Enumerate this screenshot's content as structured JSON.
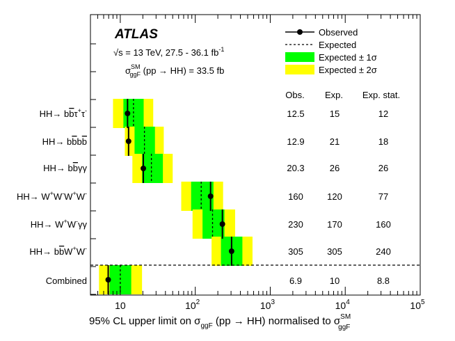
{
  "chart_data": {
    "type": "scatter",
    "title": "ATLAS",
    "subtitle_energy": "√s = 13 TeV,  27.5 - 36.1 fb",
    "subtitle_energy_sup": "-1",
    "xsec_text": {
      "sigma": "σ",
      "sup": "SM",
      "sub": "ggF",
      "rest": " (pp → HH) = 33.5 fb"
    },
    "xlabel": {
      "pre": "95% CL upper limit on σ",
      "sub1": "ggF",
      "mid": " (pp → HH) normalised to σ",
      "sup2": "SM",
      "sub2": "ggF"
    },
    "x_scale": "log",
    "xlim": [
      4,
      100000
    ],
    "x_ticks": [
      10,
      100,
      1000,
      10000,
      100000
    ],
    "x_tick_labels": [
      {
        "base": "10",
        "exp": ""
      },
      {
        "base": "10",
        "exp": "2"
      },
      {
        "base": "10",
        "exp": "3"
      },
      {
        "base": "10",
        "exp": "4"
      },
      {
        "base": "10",
        "exp": "5"
      }
    ],
    "legend": {
      "observed": "Observed",
      "expected": "Expected",
      "band1": "Expected ± 1σ",
      "band2": "Expected ± 2σ",
      "placement": "top-right"
    },
    "table_headers": [
      "Obs.",
      "Exp.",
      "Exp. stat."
    ],
    "channels": [
      {
        "label": "HH→ bb̄τ⁺τ⁻",
        "obs": 12.5,
        "exp": 15,
        "band1": [
          11,
          20.5
        ],
        "band2": [
          8,
          27.5
        ],
        "obs_text": "12.5",
        "exp_text": "15",
        "stat_text": "12"
      },
      {
        "label": "HH→ bb̄bb̄",
        "obs": 12.9,
        "exp": 21,
        "band1": [
          15.5,
          29
        ],
        "band2": [
          11.5,
          38
        ],
        "obs_text": "12.9",
        "exp_text": "21",
        "stat_text": "18"
      },
      {
        "label": "HH→ bb̄γγ",
        "obs": 20.3,
        "exp": 26,
        "band1": [
          19.5,
          37
        ],
        "band2": [
          14.5,
          50
        ],
        "obs_text": "20.3",
        "exp_text": "26",
        "stat_text": "26"
      },
      {
        "label": "HH→ W⁺W⁻W⁺W⁻",
        "obs": 160,
        "exp": 120,
        "band1": [
          88,
          175
        ],
        "band2": [
          65,
          235
        ],
        "obs_text": "160",
        "exp_text": "120",
        "stat_text": "77"
      },
      {
        "label": "HH→ W⁺W⁻γγ",
        "obs": 230,
        "exp": 170,
        "band1": [
          125,
          245
        ],
        "band2": [
          92,
          340
        ],
        "obs_text": "230",
        "exp_text": "170",
        "stat_text": "160"
      },
      {
        "label": "HH→ bb̄W⁺W⁻",
        "obs": 305,
        "exp": 305,
        "band1": [
          220,
          425
        ],
        "band2": [
          165,
          580
        ],
        "obs_text": "305",
        "exp_text": "305",
        "stat_text": "240"
      },
      {
        "label": "Combined",
        "obs": 6.9,
        "exp": 10,
        "band1": [
          7.2,
          14
        ],
        "band2": [
          5.2,
          19.5
        ],
        "obs_text": "6.9",
        "exp_text": "10",
        "stat_text": "8.8"
      }
    ],
    "colors": {
      "band1": "#00ff00",
      "band2": "#ffff00",
      "marker": "#000000"
    },
    "grid": false
  }
}
